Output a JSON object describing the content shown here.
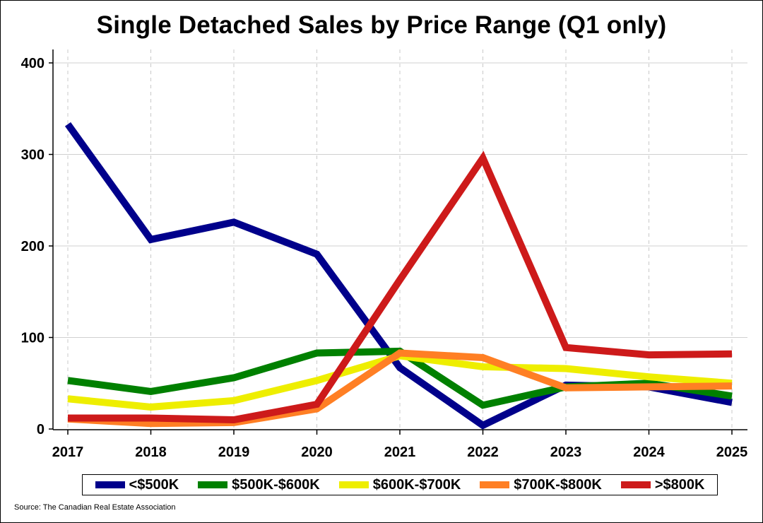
{
  "chart_data": {
    "type": "line",
    "title": "Single Detached Sales by Price Range (Q1 only)",
    "xlabel": "",
    "ylabel": "",
    "categories": [
      "2017",
      "2018",
      "2019",
      "2020",
      "2021",
      "2022",
      "2023",
      "2024",
      "2025"
    ],
    "ylim": [
      0,
      400
    ],
    "yticks": [
      "0",
      "100",
      "200",
      "300",
      "400"
    ],
    "grid": true,
    "legend_position": "bottom",
    "series": [
      {
        "name": "<$500K",
        "color": "#00008b",
        "values": [
          333,
          207,
          226,
          191,
          67,
          4,
          48,
          46,
          29
        ]
      },
      {
        "name": "$500K-$600K",
        "color": "#008000",
        "values": [
          53,
          41,
          56,
          83,
          85,
          26,
          46,
          50,
          36
        ]
      },
      {
        "name": "$600K-$700K",
        "color": "#eeee00",
        "values": [
          33,
          24,
          31,
          53,
          80,
          68,
          66,
          57,
          50
        ]
      },
      {
        "name": "$700K-$800K",
        "color": "#ff7f24",
        "values": [
          11,
          6,
          7,
          22,
          83,
          78,
          45,
          46,
          47
        ]
      },
      {
        "name": ">$800K",
        "color": "#cd1a1a",
        "values": [
          12,
          12,
          10,
          27,
          163,
          296,
          89,
          81,
          82
        ]
      }
    ],
    "source": "Source: The Canadian Real Estate Association"
  }
}
